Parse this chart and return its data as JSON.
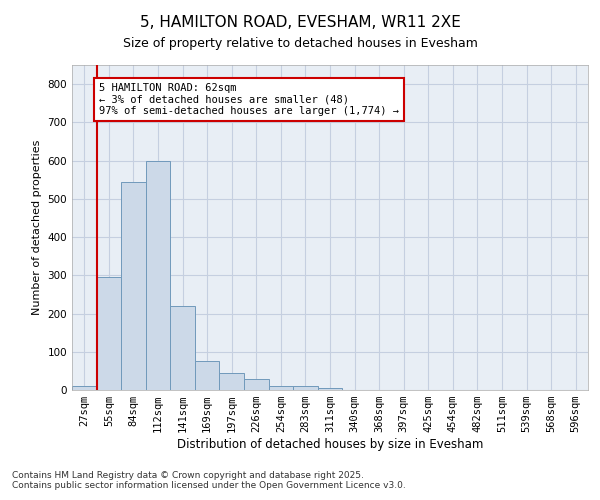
{
  "title": "5, HAMILTON ROAD, EVESHAM, WR11 2XE",
  "subtitle": "Size of property relative to detached houses in Evesham",
  "xlabel": "Distribution of detached houses by size in Evesham",
  "ylabel": "Number of detached properties",
  "bar_color": "#ccd9e8",
  "bar_edge_color": "#7099bb",
  "grid_color": "#c5cfe0",
  "bg_color": "#e8eef5",
  "categories": [
    "27sqm",
    "55sqm",
    "84sqm",
    "112sqm",
    "141sqm",
    "169sqm",
    "197sqm",
    "226sqm",
    "254sqm",
    "283sqm",
    "311sqm",
    "340sqm",
    "368sqm",
    "397sqm",
    "425sqm",
    "454sqm",
    "482sqm",
    "511sqm",
    "539sqm",
    "568sqm",
    "596sqm"
  ],
  "values": [
    10,
    295,
    545,
    600,
    220,
    75,
    45,
    30,
    10,
    10,
    5,
    0,
    0,
    0,
    0,
    0,
    0,
    0,
    0,
    0,
    0
  ],
  "ylim": [
    0,
    850
  ],
  "yticks": [
    0,
    100,
    200,
    300,
    400,
    500,
    600,
    700,
    800
  ],
  "property_line_idx": 1,
  "annotation_text": "5 HAMILTON ROAD: 62sqm\n← 3% of detached houses are smaller (48)\n97% of semi-detached houses are larger (1,774) →",
  "annotation_box_color": "#cc0000",
  "footer": "Contains HM Land Registry data © Crown copyright and database right 2025.\nContains public sector information licensed under the Open Government Licence v3.0.",
  "title_fontsize": 11,
  "subtitle_fontsize": 9,
  "xlabel_fontsize": 8.5,
  "ylabel_fontsize": 8,
  "annotation_fontsize": 7.5,
  "footer_fontsize": 6.5,
  "tick_fontsize": 7.5
}
